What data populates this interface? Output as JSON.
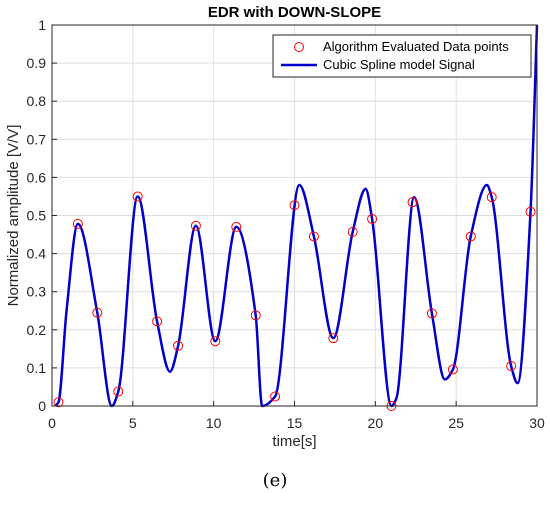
{
  "chart_data": {
    "type": "line",
    "title": "EDR with DOWN-SLOPE",
    "xlabel": "time[s]",
    "ylabel": "Normalized amplitude [V/V]",
    "xlim": [
      0,
      30
    ],
    "ylim": [
      0,
      1
    ],
    "xticks": [
      0,
      5,
      10,
      15,
      20,
      25,
      30
    ],
    "yticks": [
      0,
      0.1,
      0.2,
      0.3,
      0.4,
      0.5,
      0.6,
      0.7,
      0.8,
      0.9,
      1
    ],
    "grid": true,
    "legend_position": "top-right",
    "series": [
      {
        "name": "Algorithm Evaluated Data points",
        "style": "markers",
        "marker": "circle",
        "color": "#ff0000",
        "x": [
          0.4,
          1.6,
          2.8,
          4.1,
          5.3,
          6.5,
          7.8,
          8.9,
          10.1,
          11.4,
          12.6,
          13.8,
          15.0,
          16.2,
          17.4,
          18.6,
          19.8,
          21.0,
          22.3,
          23.5,
          24.8,
          25.9,
          27.2,
          28.4,
          29.6
        ],
        "y": [
          0.01,
          0.478,
          0.245,
          0.038,
          0.55,
          0.222,
          0.158,
          0.473,
          0.17,
          0.47,
          0.238,
          0.025,
          0.527,
          0.445,
          0.178,
          0.457,
          0.491,
          0.0,
          0.535,
          0.243,
          0.096,
          0.445,
          0.548,
          0.105,
          0.51
        ]
      },
      {
        "name": "Cubic Spline model Signal",
        "style": "line",
        "color": "#0000cc",
        "x": [
          0.2,
          0.4,
          0.9,
          1.6,
          2.8,
          3.7,
          4.1,
          5.3,
          6.5,
          7.3,
          7.8,
          8.9,
          10.1,
          11.4,
          12.6,
          13.0,
          13.8,
          15.3,
          16.2,
          17.4,
          18.6,
          19.4,
          19.8,
          21.0,
          21.3,
          22.4,
          23.5,
          24.3,
          24.8,
          25.9,
          26.9,
          27.2,
          28.4,
          28.8,
          29.6,
          30.0
        ],
        "y": [
          0.0,
          0.01,
          0.25,
          0.478,
          0.245,
          0.0,
          0.038,
          0.55,
          0.222,
          0.09,
          0.158,
          0.473,
          0.17,
          0.47,
          0.238,
          0.0,
          0.025,
          0.58,
          0.445,
          0.178,
          0.457,
          0.57,
          0.491,
          0.0,
          0.02,
          0.548,
          0.243,
          0.07,
          0.096,
          0.445,
          0.58,
          0.548,
          0.105,
          0.06,
          0.51,
          1.0
        ]
      }
    ]
  },
  "caption": "(e)"
}
